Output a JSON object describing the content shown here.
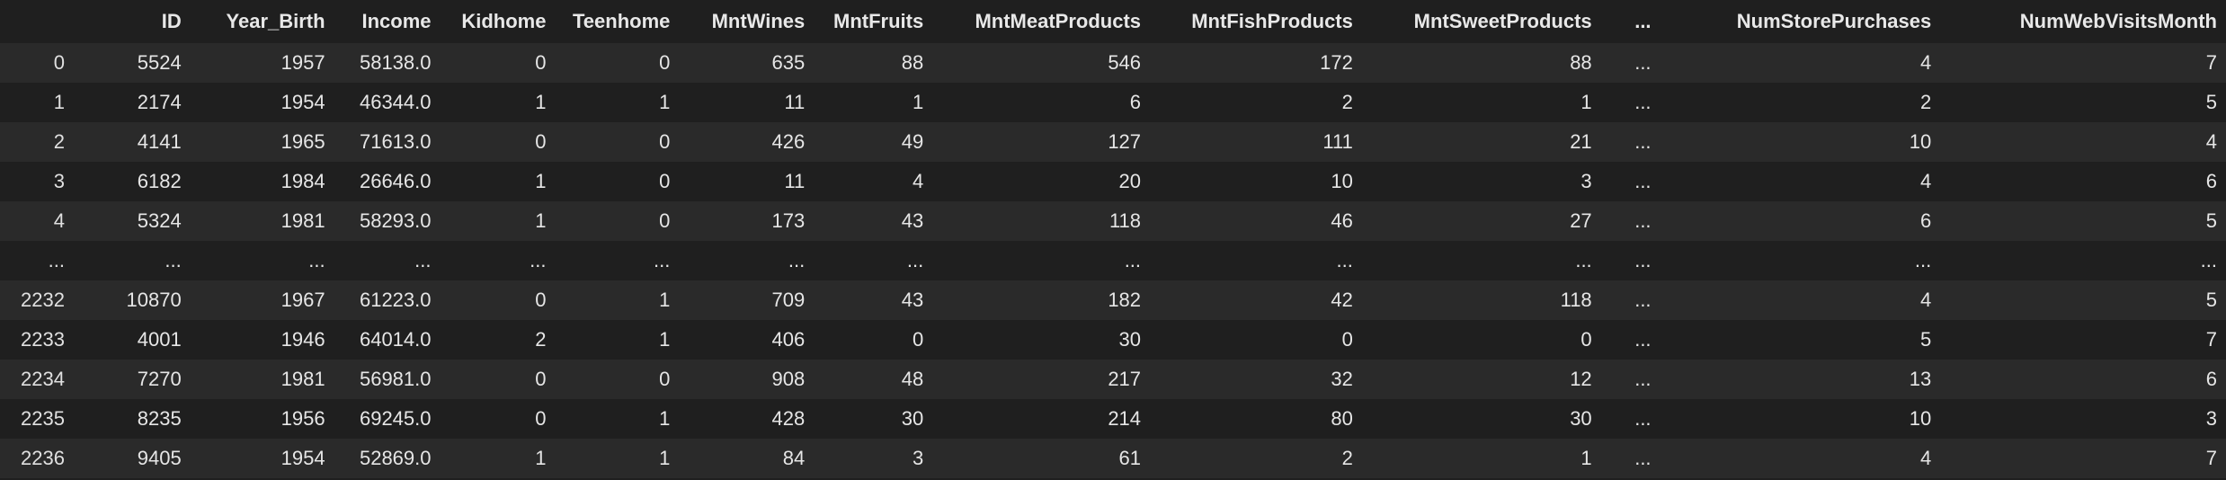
{
  "dataframe": {
    "columns": [
      "ID",
      "Year_Birth",
      "Income",
      "Kidhome",
      "Teenhome",
      "MntWines",
      "MntFruits",
      "MntMeatProducts",
      "MntFishProducts",
      "MntSweetProducts",
      "...",
      "NumStorePurchases",
      "NumWebVisitsMonth"
    ],
    "rows": [
      {
        "index": "0",
        "cells": [
          "5524",
          "1957",
          "58138.0",
          "0",
          "0",
          "635",
          "88",
          "546",
          "172",
          "88",
          "...",
          "4",
          "7"
        ]
      },
      {
        "index": "1",
        "cells": [
          "2174",
          "1954",
          "46344.0",
          "1",
          "1",
          "11",
          "1",
          "6",
          "2",
          "1",
          "...",
          "2",
          "5"
        ]
      },
      {
        "index": "2",
        "cells": [
          "4141",
          "1965",
          "71613.0",
          "0",
          "0",
          "426",
          "49",
          "127",
          "111",
          "21",
          "...",
          "10",
          "4"
        ]
      },
      {
        "index": "3",
        "cells": [
          "6182",
          "1984",
          "26646.0",
          "1",
          "0",
          "11",
          "4",
          "20",
          "10",
          "3",
          "...",
          "4",
          "6"
        ]
      },
      {
        "index": "4",
        "cells": [
          "5324",
          "1981",
          "58293.0",
          "1",
          "0",
          "173",
          "43",
          "118",
          "46",
          "27",
          "...",
          "6",
          "5"
        ]
      },
      {
        "index": "...",
        "cells": [
          "...",
          "...",
          "...",
          "...",
          "...",
          "...",
          "...",
          "...",
          "...",
          "...",
          "...",
          "...",
          "..."
        ]
      },
      {
        "index": "2232",
        "cells": [
          "10870",
          "1967",
          "61223.0",
          "0",
          "1",
          "709",
          "43",
          "182",
          "42",
          "118",
          "...",
          "4",
          "5"
        ]
      },
      {
        "index": "2233",
        "cells": [
          "4001",
          "1946",
          "64014.0",
          "2",
          "1",
          "406",
          "0",
          "30",
          "0",
          "0",
          "...",
          "5",
          "7"
        ]
      },
      {
        "index": "2234",
        "cells": [
          "7270",
          "1981",
          "56981.0",
          "0",
          "0",
          "908",
          "48",
          "217",
          "32",
          "12",
          "...",
          "13",
          "6"
        ]
      },
      {
        "index": "2235",
        "cells": [
          "8235",
          "1956",
          "69245.0",
          "0",
          "1",
          "428",
          "30",
          "214",
          "80",
          "30",
          "...",
          "10",
          "3"
        ]
      },
      {
        "index": "2236",
        "cells": [
          "9405",
          "1954",
          "52869.0",
          "1",
          "1",
          "84",
          "3",
          "61",
          "2",
          "1",
          "...",
          "4",
          "7"
        ]
      }
    ]
  }
}
